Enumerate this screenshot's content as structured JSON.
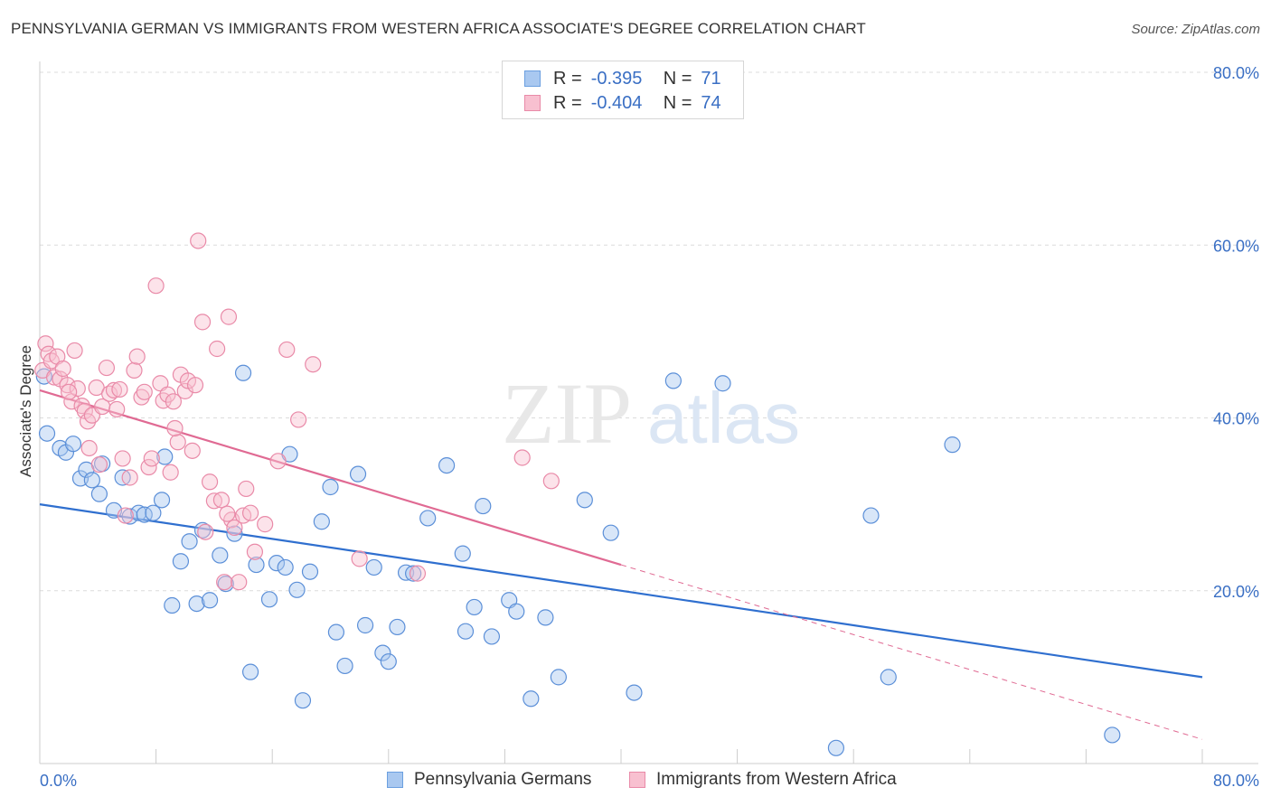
{
  "title": "PENNSYLVANIA GERMAN VS IMMIGRANTS FROM WESTERN AFRICA ASSOCIATE'S DEGREE CORRELATION CHART",
  "source": "Source: ZipAtlas.com",
  "watermark": {
    "zip": "ZIP",
    "atlas": "atlas"
  },
  "stats_legend": {
    "rows": [
      {
        "r_label": "R =",
        "r_value": "-0.395",
        "n_label": "N =",
        "n_value": "71",
        "color": "#a9c8f0",
        "border": "#6b9fe0"
      },
      {
        "r_label": "R =",
        "r_value": "-0.404",
        "n_label": "N =",
        "n_value": "74",
        "color": "#f8c0d0",
        "border": "#e98aa8"
      }
    ]
  },
  "series_legend": {
    "items": [
      {
        "label": "Pennsylvania Germans",
        "color": "#a9c8f0",
        "border": "#6b9fe0"
      },
      {
        "label": "Immigrants from Western Africa",
        "color": "#f8c0d0",
        "border": "#e98aa8"
      }
    ]
  },
  "chart_data": {
    "type": "scatter",
    "title": "PENNSYLVANIA GERMAN VS IMMIGRANTS FROM WESTERN AFRICA ASSOCIATE'S DEGREE CORRELATION CHART",
    "xlabel": "",
    "ylabel": "Associate's Degree",
    "xlim": [
      0,
      80
    ],
    "ylim": [
      0,
      80
    ],
    "x_tick_labels": [
      "0.0%",
      "80.0%"
    ],
    "y_ticks": [
      20,
      40,
      60,
      80
    ],
    "y_tick_labels": [
      "20.0%",
      "40.0%",
      "60.0%",
      "80.0%"
    ],
    "grid": true,
    "legend_position": "bottom",
    "series": [
      {
        "name": "Pennsylvania Germans",
        "color": "#5b8fd8",
        "fill": "rgba(169,200,240,0.45)",
        "trend": {
          "x": [
            0,
            80
          ],
          "y": [
            30.0,
            10.0
          ],
          "style": "solid"
        },
        "points": [
          [
            0.5,
            38.2
          ],
          [
            1.4,
            36.5
          ],
          [
            1.8,
            36.0
          ],
          [
            2.3,
            37.0
          ],
          [
            2.8,
            33.0
          ],
          [
            3.2,
            34.0
          ],
          [
            3.6,
            32.8
          ],
          [
            4.3,
            34.7
          ],
          [
            4.1,
            31.2
          ],
          [
            5.1,
            29.3
          ],
          [
            5.7,
            33.1
          ],
          [
            6.2,
            28.6
          ],
          [
            6.8,
            29.0
          ],
          [
            7.2,
            28.8
          ],
          [
            7.8,
            29.0
          ],
          [
            8.4,
            30.5
          ],
          [
            8.6,
            35.5
          ],
          [
            9.1,
            18.3
          ],
          [
            9.7,
            23.4
          ],
          [
            10.3,
            25.7
          ],
          [
            10.8,
            18.5
          ],
          [
            11.2,
            27.0
          ],
          [
            11.7,
            18.9
          ],
          [
            12.4,
            24.1
          ],
          [
            12.8,
            20.8
          ],
          [
            13.4,
            26.6
          ],
          [
            14.0,
            45.2
          ],
          [
            14.5,
            10.6
          ],
          [
            14.9,
            23.0
          ],
          [
            15.8,
            19.0
          ],
          [
            16.3,
            23.2
          ],
          [
            16.9,
            22.7
          ],
          [
            17.2,
            35.8
          ],
          [
            17.7,
            20.1
          ],
          [
            18.1,
            7.3
          ],
          [
            18.6,
            22.2
          ],
          [
            19.4,
            28.0
          ],
          [
            20.0,
            32.0
          ],
          [
            20.4,
            15.2
          ],
          [
            21.0,
            11.3
          ],
          [
            21.9,
            33.5
          ],
          [
            22.4,
            16.0
          ],
          [
            23.0,
            22.7
          ],
          [
            23.6,
            12.8
          ],
          [
            24.0,
            11.8
          ],
          [
            24.6,
            15.8
          ],
          [
            25.2,
            22.1
          ],
          [
            25.7,
            22.0
          ],
          [
            26.7,
            28.4
          ],
          [
            28.0,
            34.5
          ],
          [
            29.1,
            24.3
          ],
          [
            29.3,
            15.3
          ],
          [
            29.9,
            18.1
          ],
          [
            30.5,
            29.8
          ],
          [
            31.1,
            14.7
          ],
          [
            32.3,
            18.9
          ],
          [
            32.8,
            17.6
          ],
          [
            33.8,
            7.5
          ],
          [
            34.8,
            16.9
          ],
          [
            35.7,
            10.0
          ],
          [
            37.5,
            30.5
          ],
          [
            39.3,
            26.7
          ],
          [
            40.9,
            8.2
          ],
          [
            43.6,
            44.3
          ],
          [
            47.0,
            44.0
          ],
          [
            54.8,
            1.8
          ],
          [
            57.2,
            28.7
          ],
          [
            58.4,
            10.0
          ],
          [
            62.8,
            36.9
          ],
          [
            73.8,
            3.3
          ],
          [
            0.3,
            44.8
          ]
        ]
      },
      {
        "name": "Immigrants from Western Africa",
        "color": "#e98aa8",
        "fill": "rgba(248,192,208,0.45)",
        "trend": {
          "x": [
            0,
            40
          ],
          "y": [
            43.2,
            23.0
          ],
          "style": "solid",
          "extend_to": [
            80,
            2.8
          ],
          "extend_style": "dashed"
        },
        "points": [
          [
            0.2,
            45.5
          ],
          [
            0.4,
            48.6
          ],
          [
            0.6,
            47.4
          ],
          [
            0.8,
            46.6
          ],
          [
            1.0,
            44.7
          ],
          [
            1.2,
            47.1
          ],
          [
            1.4,
            44.5
          ],
          [
            1.6,
            45.7
          ],
          [
            1.9,
            43.8
          ],
          [
            2.2,
            41.9
          ],
          [
            2.4,
            47.8
          ],
          [
            2.6,
            43.4
          ],
          [
            2.9,
            41.4
          ],
          [
            3.1,
            40.8
          ],
          [
            3.3,
            39.6
          ],
          [
            3.4,
            36.5
          ],
          [
            3.6,
            40.3
          ],
          [
            3.9,
            43.5
          ],
          [
            4.1,
            34.6
          ],
          [
            4.3,
            41.3
          ],
          [
            4.6,
            45.8
          ],
          [
            4.8,
            42.8
          ],
          [
            5.1,
            43.2
          ],
          [
            5.3,
            41.0
          ],
          [
            5.5,
            43.3
          ],
          [
            5.7,
            35.3
          ],
          [
            5.9,
            28.7
          ],
          [
            6.2,
            33.1
          ],
          [
            6.5,
            45.5
          ],
          [
            6.7,
            47.1
          ],
          [
            7.0,
            42.4
          ],
          [
            7.2,
            43.0
          ],
          [
            7.5,
            34.3
          ],
          [
            7.7,
            35.3
          ],
          [
            8.0,
            55.3
          ],
          [
            8.3,
            44.0
          ],
          [
            8.5,
            42.0
          ],
          [
            8.8,
            42.7
          ],
          [
            9.0,
            33.7
          ],
          [
            9.2,
            41.9
          ],
          [
            9.5,
            37.2
          ],
          [
            9.7,
            45.0
          ],
          [
            10.0,
            43.1
          ],
          [
            10.2,
            44.3
          ],
          [
            10.5,
            36.2
          ],
          [
            10.7,
            43.8
          ],
          [
            10.9,
            60.5
          ],
          [
            11.2,
            51.1
          ],
          [
            11.4,
            26.8
          ],
          [
            11.7,
            32.6
          ],
          [
            12.0,
            30.4
          ],
          [
            12.2,
            48.0
          ],
          [
            12.5,
            30.5
          ],
          [
            12.7,
            21.0
          ],
          [
            13.0,
            51.7
          ],
          [
            13.2,
            28.2
          ],
          [
            13.4,
            27.3
          ],
          [
            13.7,
            21.0
          ],
          [
            14.0,
            28.7
          ],
          [
            14.2,
            31.8
          ],
          [
            14.5,
            29.0
          ],
          [
            14.8,
            24.5
          ],
          [
            15.5,
            27.7
          ],
          [
            16.4,
            35.0
          ],
          [
            17.0,
            47.9
          ],
          [
            17.8,
            39.8
          ],
          [
            18.8,
            46.2
          ],
          [
            22.0,
            23.7
          ],
          [
            26.0,
            22.0
          ],
          [
            33.2,
            35.4
          ],
          [
            35.2,
            32.7
          ],
          [
            9.3,
            38.8
          ],
          [
            2.0,
            43.0
          ],
          [
            12.9,
            28.9
          ]
        ]
      }
    ]
  }
}
